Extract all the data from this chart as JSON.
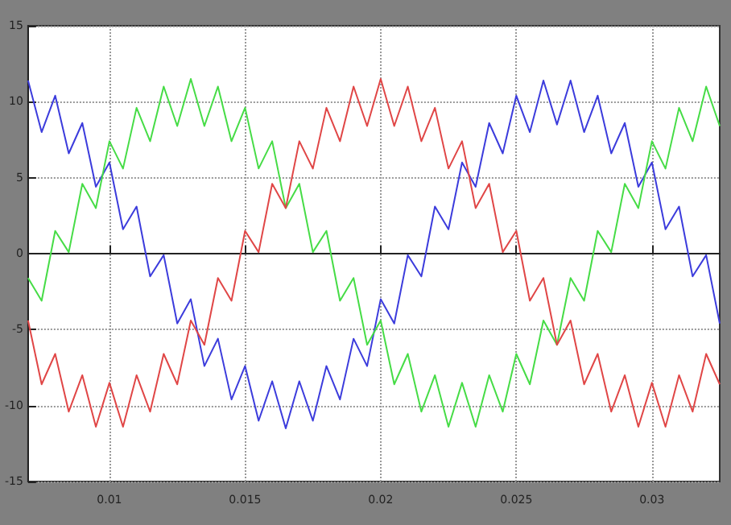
{
  "chart_data": {
    "type": "line",
    "x": [
      0.007,
      0.0075,
      0.008,
      0.0085,
      0.009,
      0.0095,
      0.01,
      0.0105,
      0.011,
      0.0115,
      0.012,
      0.0125,
      0.013,
      0.0135,
      0.014,
      0.0145,
      0.015,
      0.0155,
      0.016,
      0.0165,
      0.017,
      0.0175,
      0.018,
      0.0185,
      0.019,
      0.0195,
      0.02,
      0.0205,
      0.021,
      0.0215,
      0.022,
      0.0225,
      0.023,
      0.0235,
      0.024,
      0.0245,
      0.025,
      0.0255,
      0.026,
      0.0265,
      0.027,
      0.0275,
      0.028,
      0.0285,
      0.029,
      0.0295,
      0.03,
      0.0305,
      0.031,
      0.0315,
      0.032,
      0.0325
    ],
    "series": [
      {
        "color": "#3c3cdc",
        "values": [
          11.4,
          8.0,
          10.4,
          6.6,
          8.6,
          4.4,
          6.0,
          1.6,
          3.1,
          -1.5,
          -0.1,
          -4.6,
          -3.0,
          -7.4,
          -5.6,
          -9.6,
          -7.4,
          -11.0,
          -8.4,
          -11.5,
          -8.4,
          -11.0,
          -7.4,
          -9.6,
          -5.6,
          -7.4,
          -3.0,
          -4.6,
          -0.1,
          -1.5,
          3.1,
          1.6,
          6.0,
          4.4,
          8.6,
          6.6,
          10.4,
          8.0,
          11.4,
          8.5,
          11.4,
          8.0,
          10.4,
          6.6,
          8.6,
          4.4,
          6.0,
          1.6,
          3.1,
          -1.5,
          -0.1,
          -4.6
        ]
      },
      {
        "color": "#46dc46",
        "values": [
          -1.6,
          -3.1,
          1.5,
          0.1,
          4.6,
          3.0,
          7.4,
          5.6,
          9.6,
          7.4,
          11.0,
          8.4,
          11.5,
          8.4,
          11.0,
          7.4,
          9.6,
          5.6,
          7.4,
          3.0,
          4.6,
          0.1,
          1.5,
          -3.1,
          -1.6,
          -6.0,
          -4.4,
          -8.6,
          -6.6,
          -10.4,
          -8.0,
          -11.4,
          -8.5,
          -11.4,
          -8.0,
          -10.4,
          -6.6,
          -8.6,
          -4.4,
          -6.0,
          -1.6,
          -3.1,
          1.5,
          0.1,
          4.6,
          3.0,
          7.4,
          5.6,
          9.6,
          7.4,
          11.0,
          8.4
        ]
      },
      {
        "color": "#e04646",
        "values": [
          -4.4,
          -8.6,
          -6.6,
          -10.4,
          -8.0,
          -11.4,
          -8.5,
          -11.4,
          -8.0,
          -10.4,
          -6.6,
          -8.6,
          -4.4,
          -6.0,
          -1.6,
          -3.1,
          1.5,
          0.1,
          4.6,
          3.0,
          7.4,
          5.6,
          9.6,
          7.4,
          11.0,
          8.4,
          11.5,
          8.4,
          11.0,
          7.4,
          9.6,
          5.6,
          7.4,
          3.0,
          4.6,
          0.1,
          1.5,
          -3.1,
          -1.6,
          -6.0,
          -4.4,
          -8.6,
          -6.6,
          -10.4,
          -8.0,
          -11.4,
          -8.5,
          -11.4,
          -8.0,
          -10.4,
          -6.6,
          -8.6
        ]
      }
    ],
    "xlim": [
      0.007,
      0.0325
    ],
    "xticks": [
      0.01,
      0.015,
      0.02,
      0.025,
      0.03
    ],
    "ylim": [
      -15,
      15
    ],
    "yticks": [
      -15,
      -10,
      -5,
      0,
      5,
      10,
      15
    ],
    "grid": true,
    "marker": "none",
    "line_style": "solid"
  }
}
